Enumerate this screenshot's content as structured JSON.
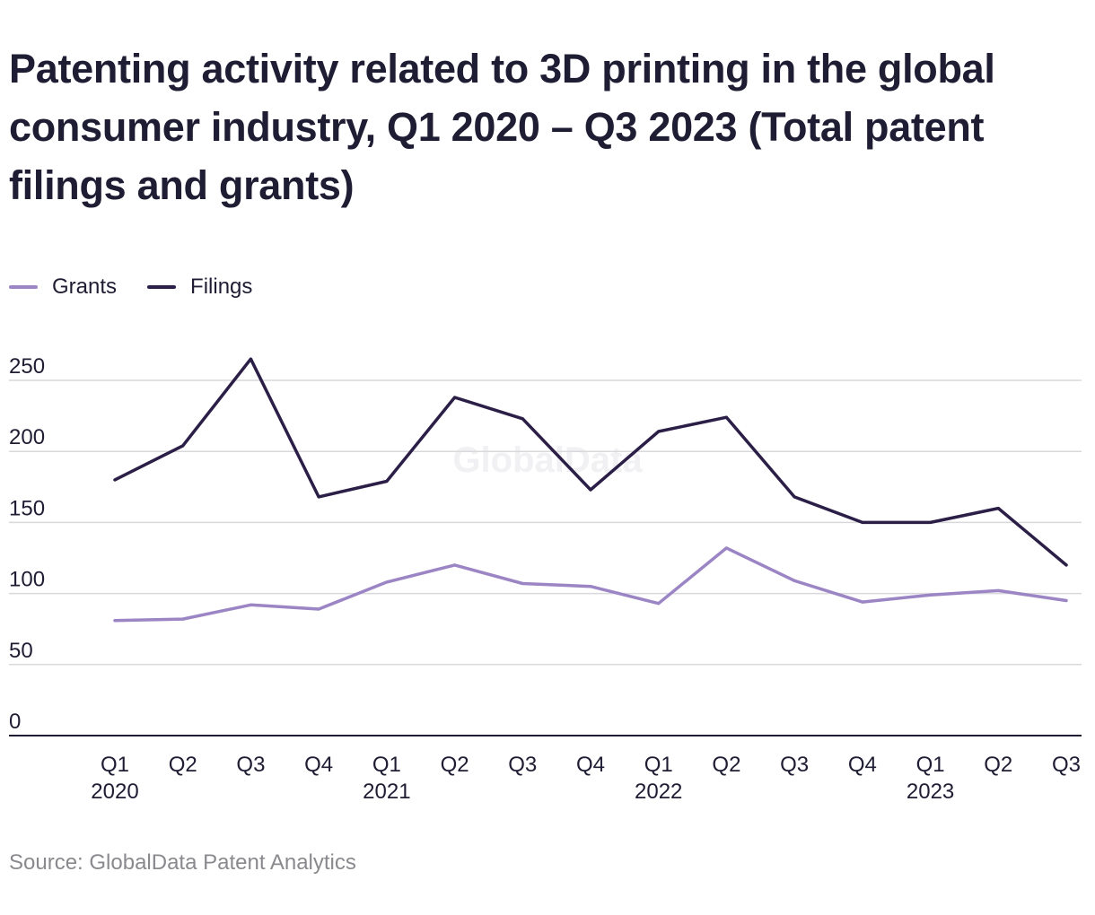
{
  "chart_data": {
    "type": "line",
    "title": "Patenting activity related to 3D printing in the global consumer industry, Q1 2020 – Q3 2023 (Total patent filings and grants)",
    "x": [
      "Q1",
      "Q2",
      "Q3",
      "Q4",
      "Q1",
      "Q2",
      "Q3",
      "Q4",
      "Q1",
      "Q2",
      "Q3",
      "Q4",
      "Q1",
      "Q2",
      "Q3"
    ],
    "x_years": [
      "2020",
      "",
      "",
      "",
      "2021",
      "",
      "",
      "",
      "2022",
      "",
      "",
      "",
      "2023",
      "",
      ""
    ],
    "series": [
      {
        "name": "Grants",
        "color": "#9b85c4",
        "values": [
          81,
          82,
          92,
          89,
          108,
          120,
          107,
          105,
          93,
          132,
          109,
          94,
          99,
          102,
          95
        ]
      },
      {
        "name": "Filings",
        "color": "#2b1f47",
        "values": [
          180,
          204,
          265,
          168,
          179,
          238,
          223,
          173,
          214,
          224,
          168,
          150,
          150,
          160,
          120
        ]
      }
    ],
    "ylim": [
      0,
      250
    ],
    "yticks": [
      0,
      50,
      100,
      150,
      200,
      250
    ],
    "grid": true,
    "legend": "top-left",
    "watermark": "GlobalData"
  },
  "source": "Source: GlobalData Patent Analytics"
}
